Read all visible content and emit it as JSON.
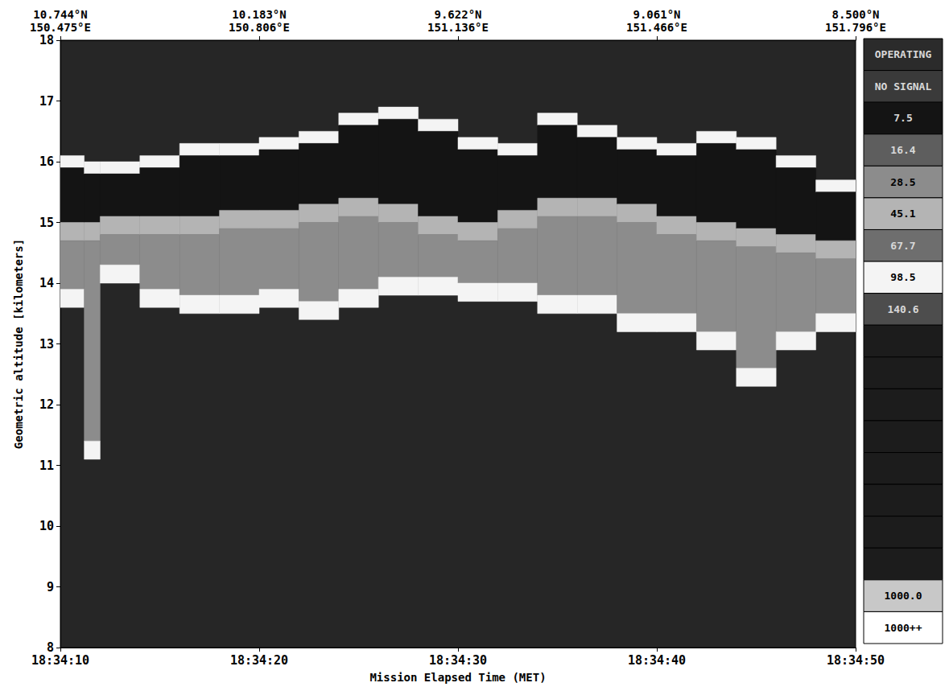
{
  "chart_data": {
    "type": "heatmap",
    "x_label": "Mission Elapsed Time (MET)",
    "y_label": "Geometric altitude [kilometers]",
    "xlim": [
      66850,
      66890
    ],
    "xticks": [
      {
        "value": 66850,
        "label": "18:34:10"
      },
      {
        "value": 66860,
        "label": "18:34:20"
      },
      {
        "value": 66870,
        "label": "18:34:30"
      },
      {
        "value": 66880,
        "label": "18:34:40"
      },
      {
        "value": 66890,
        "label": "18:34:50"
      }
    ],
    "x2ticks": [
      {
        "value": 66850,
        "label": "10.744°N\n150.475°E"
      },
      {
        "value": 66860,
        "label": "10.183°N\n150.806°E"
      },
      {
        "value": 66870,
        "label": "9.622°N\n151.136°E"
      },
      {
        "value": 66880,
        "label": "9.061°N\n151.466°E"
      },
      {
        "value": 66890,
        "label": "8.500°N\n151.796°E"
      }
    ],
    "ylim": [
      8,
      18
    ],
    "yticks": [
      8,
      9,
      10,
      11,
      12,
      13,
      14,
      15,
      16,
      17,
      18
    ],
    "cells": [
      [
        66850,
        66851.2,
        15.9,
        16.1,
        98.5
      ],
      [
        66850,
        66851.2,
        15.0,
        15.9,
        7.5
      ],
      [
        66850,
        66851.2,
        14.7,
        15.0,
        45.1
      ],
      [
        66850,
        66851.2,
        13.9,
        14.7,
        28.5
      ],
      [
        66850,
        66851.2,
        13.6,
        13.9,
        98.5
      ],
      [
        66851.2,
        66852,
        15.8,
        16.0,
        98.5
      ],
      [
        66851.2,
        66852,
        15.0,
        15.8,
        7.5
      ],
      [
        66851.2,
        66852,
        14.7,
        15.0,
        45.1
      ],
      [
        66851.2,
        66852,
        11.4,
        14.7,
        28.5
      ],
      [
        66851.2,
        66852,
        11.1,
        11.4,
        98.5
      ],
      [
        66852,
        66854,
        15.8,
        16.0,
        98.5
      ],
      [
        66852,
        66854,
        15.1,
        15.8,
        7.5
      ],
      [
        66852,
        66854,
        14.8,
        15.1,
        45.1
      ],
      [
        66852,
        66854,
        14.3,
        14.8,
        28.5
      ],
      [
        66852,
        66854,
        14.0,
        14.3,
        98.5
      ],
      [
        66854,
        66856,
        15.9,
        16.1,
        98.5
      ],
      [
        66854,
        66856,
        15.1,
        15.9,
        7.5
      ],
      [
        66854,
        66856,
        14.8,
        15.1,
        45.1
      ],
      [
        66854,
        66856,
        13.9,
        14.8,
        28.5
      ],
      [
        66854,
        66856,
        13.6,
        13.9,
        98.5
      ],
      [
        66856,
        66858,
        16.1,
        16.3,
        98.5
      ],
      [
        66856,
        66858,
        15.1,
        16.1,
        7.5
      ],
      [
        66856,
        66858,
        14.8,
        15.1,
        45.1
      ],
      [
        66856,
        66858,
        13.8,
        14.8,
        28.5
      ],
      [
        66856,
        66858,
        13.5,
        13.8,
        98.5
      ],
      [
        66858,
        66860,
        16.1,
        16.3,
        98.5
      ],
      [
        66858,
        66860,
        15.2,
        16.1,
        7.5
      ],
      [
        66858,
        66860,
        14.9,
        15.2,
        45.1
      ],
      [
        66858,
        66860,
        13.8,
        14.9,
        28.5
      ],
      [
        66858,
        66860,
        13.5,
        13.8,
        98.5
      ],
      [
        66860,
        66862,
        16.2,
        16.4,
        98.5
      ],
      [
        66860,
        66862,
        15.2,
        16.2,
        7.5
      ],
      [
        66860,
        66862,
        14.9,
        15.2,
        45.1
      ],
      [
        66860,
        66862,
        13.9,
        14.9,
        28.5
      ],
      [
        66860,
        66862,
        13.6,
        13.9,
        98.5
      ],
      [
        66862,
        66864,
        16.3,
        16.5,
        98.5
      ],
      [
        66862,
        66864,
        15.3,
        16.3,
        7.5
      ],
      [
        66862,
        66864,
        15.0,
        15.3,
        45.1
      ],
      [
        66862,
        66864,
        13.7,
        15.0,
        28.5
      ],
      [
        66862,
        66864,
        13.4,
        13.7,
        98.5
      ],
      [
        66864,
        66866,
        16.6,
        16.8,
        98.5
      ],
      [
        66864,
        66866,
        15.4,
        16.6,
        7.5
      ],
      [
        66864,
        66866,
        15.1,
        15.4,
        45.1
      ],
      [
        66864,
        66866,
        13.9,
        15.1,
        28.5
      ],
      [
        66864,
        66866,
        13.6,
        13.9,
        98.5
      ],
      [
        66866,
        66868,
        16.7,
        16.9,
        98.5
      ],
      [
        66866,
        66868,
        15.3,
        16.7,
        7.5
      ],
      [
        66866,
        66868,
        15.0,
        15.3,
        45.1
      ],
      [
        66866,
        66868,
        14.1,
        15.0,
        28.5
      ],
      [
        66866,
        66868,
        13.8,
        14.1,
        98.5
      ],
      [
        66868,
        66870,
        16.5,
        16.7,
        98.5
      ],
      [
        66868,
        66870,
        15.1,
        16.5,
        7.5
      ],
      [
        66868,
        66870,
        14.8,
        15.1,
        45.1
      ],
      [
        66868,
        66870,
        14.1,
        14.8,
        28.5
      ],
      [
        66868,
        66870,
        13.8,
        14.1,
        98.5
      ],
      [
        66870,
        66872,
        16.2,
        16.4,
        98.5
      ],
      [
        66870,
        66872,
        15.0,
        16.2,
        7.5
      ],
      [
        66870,
        66872,
        14.7,
        15.0,
        45.1
      ],
      [
        66870,
        66872,
        14.0,
        14.7,
        28.5
      ],
      [
        66870,
        66872,
        13.7,
        14.0,
        98.5
      ],
      [
        66872,
        66874,
        16.1,
        16.3,
        98.5
      ],
      [
        66872,
        66874,
        15.2,
        16.1,
        7.5
      ],
      [
        66872,
        66874,
        14.9,
        15.2,
        45.1
      ],
      [
        66872,
        66874,
        14.0,
        14.9,
        28.5
      ],
      [
        66872,
        66874,
        13.7,
        14.0,
        98.5
      ],
      [
        66874,
        66876,
        16.6,
        16.8,
        98.5
      ],
      [
        66874,
        66876,
        15.4,
        16.6,
        7.5
      ],
      [
        66874,
        66876,
        15.1,
        15.4,
        45.1
      ],
      [
        66874,
        66876,
        13.8,
        15.1,
        28.5
      ],
      [
        66874,
        66876,
        13.5,
        13.8,
        98.5
      ],
      [
        66876,
        66878,
        16.4,
        16.6,
        98.5
      ],
      [
        66876,
        66878,
        15.4,
        16.4,
        7.5
      ],
      [
        66876,
        66878,
        15.1,
        15.4,
        45.1
      ],
      [
        66876,
        66878,
        13.8,
        15.1,
        28.5
      ],
      [
        66876,
        66878,
        13.5,
        13.8,
        98.5
      ],
      [
        66878,
        66880,
        16.2,
        16.4,
        98.5
      ],
      [
        66878,
        66880,
        15.3,
        16.2,
        7.5
      ],
      [
        66878,
        66880,
        15.0,
        15.3,
        45.1
      ],
      [
        66878,
        66880,
        13.5,
        15.0,
        28.5
      ],
      [
        66878,
        66880,
        13.2,
        13.5,
        98.5
      ],
      [
        66880,
        66882,
        16.1,
        16.3,
        98.5
      ],
      [
        66880,
        66882,
        15.1,
        16.1,
        7.5
      ],
      [
        66880,
        66882,
        14.8,
        15.1,
        45.1
      ],
      [
        66880,
        66882,
        13.5,
        14.8,
        28.5
      ],
      [
        66880,
        66882,
        13.2,
        13.5,
        98.5
      ],
      [
        66882,
        66884,
        16.3,
        16.5,
        98.5
      ],
      [
        66882,
        66884,
        15.0,
        16.3,
        7.5
      ],
      [
        66882,
        66884,
        14.7,
        15.0,
        45.1
      ],
      [
        66882,
        66884,
        13.2,
        14.7,
        28.5
      ],
      [
        66882,
        66884,
        12.9,
        13.2,
        98.5
      ],
      [
        66884,
        66886,
        16.2,
        16.4,
        98.5
      ],
      [
        66884,
        66886,
        14.9,
        16.2,
        7.5
      ],
      [
        66884,
        66886,
        14.6,
        14.9,
        45.1
      ],
      [
        66884,
        66886,
        12.6,
        14.6,
        28.5
      ],
      [
        66884,
        66886,
        12.3,
        12.6,
        98.5
      ],
      [
        66886,
        66888,
        15.9,
        16.1,
        98.5
      ],
      [
        66886,
        66888,
        14.8,
        15.9,
        7.5
      ],
      [
        66886,
        66888,
        14.5,
        14.8,
        45.1
      ],
      [
        66886,
        66888,
        13.2,
        14.5,
        28.5
      ],
      [
        66886,
        66888,
        12.9,
        13.2,
        98.5
      ],
      [
        66888,
        66890,
        15.5,
        15.7,
        98.5
      ],
      [
        66888,
        66890,
        14.7,
        15.5,
        7.5
      ],
      [
        66888,
        66890,
        14.4,
        14.7,
        45.1
      ],
      [
        66888,
        66890,
        13.5,
        14.4,
        28.5
      ],
      [
        66888,
        66890,
        13.2,
        13.5,
        98.5
      ]
    ],
    "colorbar": {
      "entries": [
        {
          "label": "OPERATING",
          "color": "#2b2b2b"
        },
        {
          "label": "NO SIGNAL",
          "color": "#3a3a3a"
        },
        {
          "value": 7.5,
          "label": "7.5",
          "color": "#141414"
        },
        {
          "value": 16.4,
          "label": "16.4",
          "color": "#5e5e5e"
        },
        {
          "value": 28.5,
          "label": "28.5",
          "color": "#8c8c8c"
        },
        {
          "value": 45.1,
          "label": "45.1",
          "color": "#b4b4b4"
        },
        {
          "value": 67.7,
          "label": "67.7",
          "color": "#6e6e6e"
        },
        {
          "value": 98.5,
          "label": "98.5",
          "color": "#f4f4f4"
        },
        {
          "value": 140.6,
          "label": "140.6",
          "color": "#4d4d4d"
        },
        {
          "color": "#1c1c1c"
        },
        {
          "color": "#1c1c1c"
        },
        {
          "color": "#1c1c1c"
        },
        {
          "color": "#1c1c1c"
        },
        {
          "color": "#1c1c1c"
        },
        {
          "color": "#1c1c1c"
        },
        {
          "color": "#1c1c1c"
        },
        {
          "color": "#1c1c1c"
        },
        {
          "value": 1000.0,
          "label": "1000.0",
          "color": "#c8c8c8"
        },
        {
          "label": "1000++",
          "color": "#ffffff"
        }
      ]
    }
  }
}
